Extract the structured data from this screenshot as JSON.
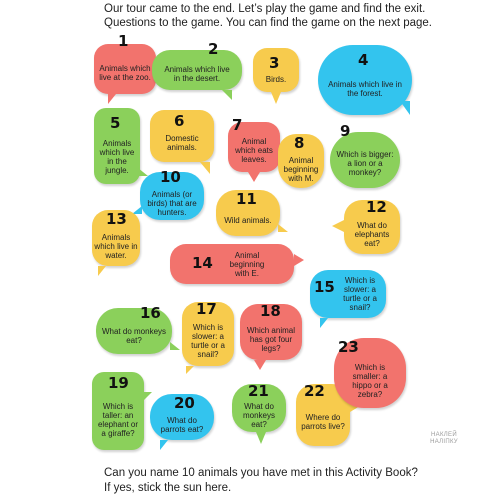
{
  "intro": {
    "line1": "Our tour came to the end. Let’s play the game and find the exit.",
    "line2": "Questions to the game. You can find the game on the next page."
  },
  "bubbles": [
    {
      "number": "1",
      "text": "Animals which live at the zoo.",
      "color": "#f2736d"
    },
    {
      "number": "2",
      "text": "Animals which live in the desert.",
      "color": "#8bd05b"
    },
    {
      "number": "3",
      "text": "Birds.",
      "color": "#f7cb4d"
    },
    {
      "number": "4",
      "text": "Animals which live in the forest.",
      "color": "#33c4ee"
    },
    {
      "number": "5",
      "text": "Animals which live in the jungle.",
      "color": "#8bd05b"
    },
    {
      "number": "6",
      "text": "Domestic animals.",
      "color": "#f7cb4d"
    },
    {
      "number": "7",
      "text": "Animal which eats leaves.",
      "color": "#f2736d"
    },
    {
      "number": "8",
      "text": "Animal beginning with M.",
      "color": "#f7cb4d"
    },
    {
      "number": "9",
      "text": "Which is bigger: a lion or a monkey?",
      "color": "#8bd05b"
    },
    {
      "number": "10",
      "text": "Animals (or birds) that are hunters.",
      "color": "#33c4ee"
    },
    {
      "number": "11",
      "text": "Wild animals.",
      "color": "#f7cb4d"
    },
    {
      "number": "12",
      "text": "What do elephants eat?",
      "color": "#f7cb4d"
    },
    {
      "number": "13",
      "text": "Animals which live in water.",
      "color": "#f7cb4d"
    },
    {
      "number": "14",
      "text": "Animal beginning with E.",
      "color": "#f2736d"
    },
    {
      "number": "15",
      "text": "Which is slower: a turtle or a snail?",
      "color": "#33c4ee"
    },
    {
      "number": "16",
      "text": "What do monkeys eat?",
      "color": "#8bd05b"
    },
    {
      "number": "17",
      "text": "Which is slower: a turtle or a snail?",
      "color": "#f7cb4d"
    },
    {
      "number": "18",
      "text": "Which animal has got four legs?",
      "color": "#f2736d"
    },
    {
      "number": "19",
      "text": "Which is taller: an elephant or a giraffe?",
      "color": "#8bd05b"
    },
    {
      "number": "20",
      "text": "What do parrots eat?",
      "color": "#33c4ee"
    },
    {
      "number": "21",
      "text": "What do monkeys eat?",
      "color": "#8bd05b"
    },
    {
      "number": "22",
      "text": "Where do parrots live?",
      "color": "#f7cb4d"
    },
    {
      "number": "23",
      "text": "Which is smaller: a hippo or a zebra?",
      "color": "#f2736d"
    }
  ],
  "sticker_note": {
    "line1": "НАКЛЕЙ",
    "line2": "НАЛІПКУ"
  },
  "outro": {
    "line1": "Can you name 10 animals you have met in this Activity Book?",
    "line2": "If yes, stick the sun here."
  }
}
